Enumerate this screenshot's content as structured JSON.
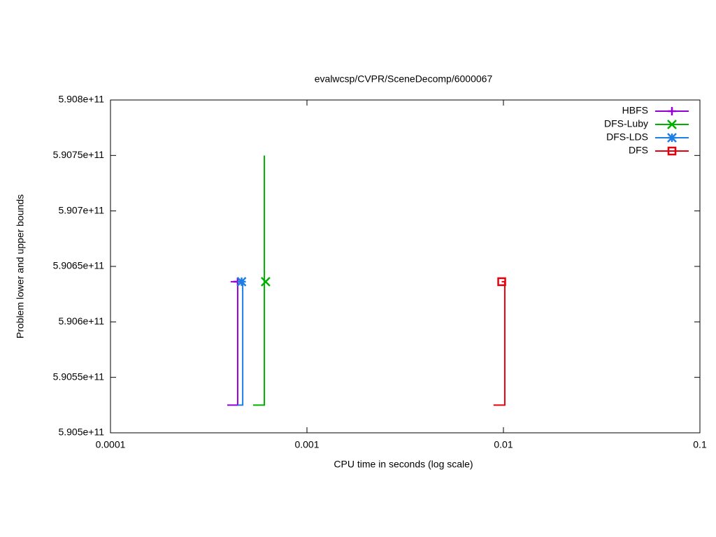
{
  "chart_data": {
    "type": "line",
    "title": "evalwcsp/CVPR/SceneDecomp/6000067",
    "x_label": "CPU time in seconds (log scale)",
    "y_label": "Problem lower and upper bounds",
    "xscale": "log",
    "xlim": [
      0.0001,
      0.1
    ],
    "xticks": [
      0.0001,
      0.001,
      0.01,
      0.1
    ],
    "ylim": [
      590500000000,
      590800000000
    ],
    "yticks": [
      {
        "value": 590500000000,
        "label": "5.905e+11"
      },
      {
        "value": 590550000000,
        "label": "5.9055e+11"
      },
      {
        "value": 590600000000,
        "label": "5.906e+11"
      },
      {
        "value": 590650000000,
        "label": "5.9065e+11"
      },
      {
        "value": 590700000000,
        "label": "5.907e+11"
      },
      {
        "value": 590750000000,
        "label": "5.9075e+11"
      },
      {
        "value": 590800000000,
        "label": "5.908e+11"
      }
    ],
    "legend": "top-right",
    "series": [
      {
        "name": "HBFS",
        "color": "#9400d3",
        "marker": "plus",
        "x": [
          0.000409,
          0.000444,
          0.000444,
          0.000393
        ],
        "values": [
          590636200000,
          590636200000,
          590525000000,
          590525000000
        ],
        "marker_x": [
          0.000444
        ],
        "marker_values": [
          590636200000
        ]
      },
      {
        "name": "DFS-Luby",
        "color": "#00b000",
        "marker": "x",
        "x": [
          0.000607,
          0.000607,
          0.000532
        ],
        "values": [
          590750000000,
          590525000000,
          590525000000
        ],
        "marker_x": [
          0.000616
        ],
        "marker_values": [
          590636200000
        ]
      },
      {
        "name": "DFS-LDS",
        "color": "#1e7ee6",
        "marker": "star",
        "x": [
          0.000471,
          0.000471,
          0.000444
        ],
        "values": [
          590636200000,
          590525000000,
          590525000000
        ],
        "marker_x": [
          0.000465
        ],
        "marker_values": [
          590636200000
        ]
      },
      {
        "name": "DFS",
        "color": "#e8000b",
        "marker": "square",
        "x": [
          0.0098,
          0.01016,
          0.01016,
          0.0089
        ],
        "values": [
          590636200000,
          590636200000,
          590525000000,
          590525000000
        ],
        "marker_x": [
          0.0098
        ],
        "marker_values": [
          590636200000
        ]
      }
    ]
  }
}
